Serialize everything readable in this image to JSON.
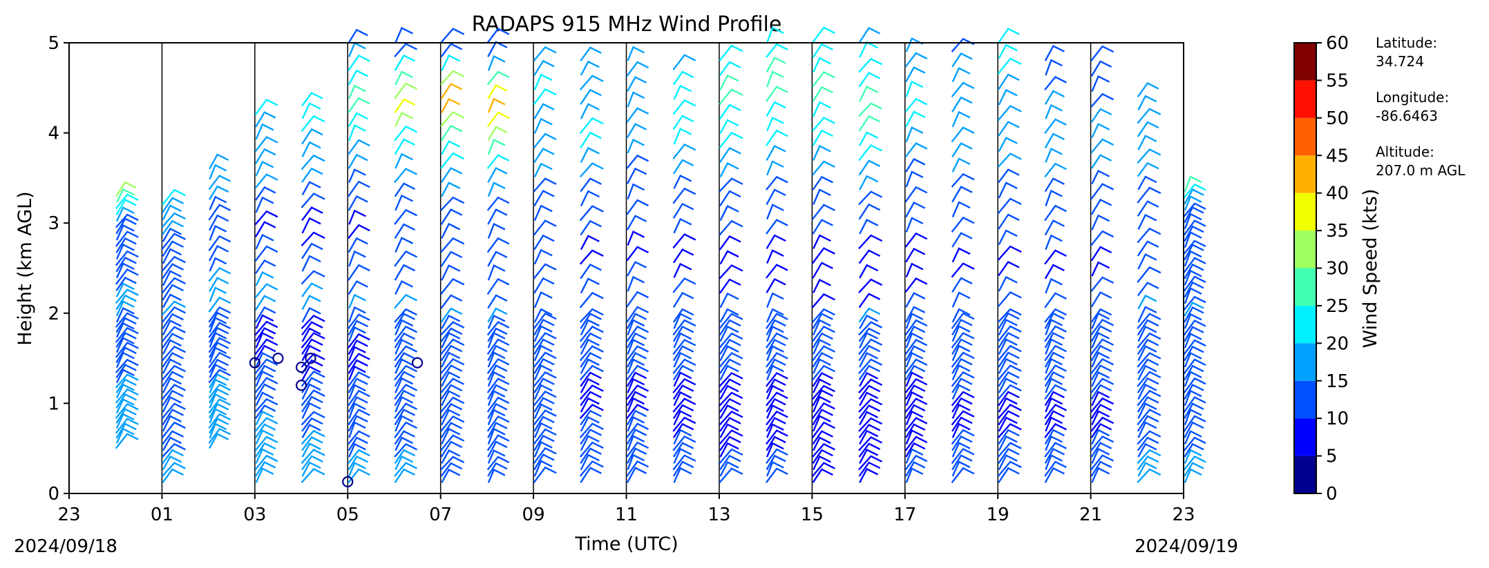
{
  "chart_data": {
    "type": "wind_barb_profile",
    "title": "RADAPS 915 MHz Wind Profile",
    "xlabel": "Time (UTC)",
    "ylabel": "Height (km AGL)",
    "ylim": [
      0,
      5
    ],
    "yticks": [
      0,
      1,
      2,
      3,
      4,
      5
    ],
    "xticks": [
      "23",
      "01",
      "03",
      "05",
      "07",
      "09",
      "11",
      "13",
      "15",
      "17",
      "19",
      "21",
      "23"
    ],
    "x_start_hour": 23,
    "x_span_hours": 24,
    "date_start": "2024/09/18",
    "date_end": "2024/09/19",
    "colorbar": {
      "label": "Wind Speed (kts)",
      "ticks": [
        0,
        5,
        10,
        15,
        20,
        25,
        30,
        35,
        40,
        45,
        50,
        55,
        60
      ],
      "colors": [
        "#00008f",
        "#0000ff",
        "#0050ff",
        "#00a0ff",
        "#00f0ff",
        "#40ffb0",
        "#a0ff60",
        "#f0ff00",
        "#ffb000",
        "#ff6000",
        "#ff1000",
        "#800000"
      ]
    },
    "site": {
      "latitude_label": "Latitude:",
      "latitude": "34.724",
      "longitude_label": "Longitude:",
      "longitude": "-86.6463",
      "altitude_label": "Altitude:",
      "altitude": "207.0 m AGL"
    },
    "profiles": [
      {
        "t": 23.0,
        "top": 3.35,
        "speeds": [
          15,
          14,
          13,
          12,
          11,
          10,
          10,
          11,
          12,
          13,
          14,
          13,
          12,
          11,
          12,
          13,
          14,
          16,
          18,
          22,
          26
        ]
      },
      {
        "t": 0.0,
        "bottom": 0.5,
        "top": 3.3,
        "speeds": [
          18,
          17,
          16,
          15,
          14,
          12,
          11,
          10,
          10,
          11,
          11,
          12,
          12,
          13,
          14,
          16,
          20,
          24,
          28,
          30
        ]
      },
      {
        "t": 1.0,
        "top": 3.2,
        "speeds": [
          15,
          14,
          13,
          12,
          11,
          10,
          10,
          11,
          12,
          13,
          14,
          15,
          16,
          17,
          18,
          20
        ]
      },
      {
        "t": 2.0,
        "bottom": 0.5,
        "top": 3.6,
        "speeds": [
          18,
          17,
          16,
          15,
          14,
          12,
          11,
          11,
          12,
          13,
          14,
          15,
          16,
          17,
          18
        ]
      },
      {
        "t": 3.0,
        "top": 4.2,
        "speeds": [
          17,
          16,
          15,
          14,
          12,
          10,
          5,
          8,
          12,
          14,
          16,
          17,
          18,
          18,
          19,
          19,
          20
        ]
      },
      {
        "t": 4.0,
        "top": 4.3,
        "speeds": [
          16,
          15,
          14,
          13,
          12,
          8,
          5,
          7,
          10,
          14,
          16,
          17,
          18,
          19,
          20,
          20,
          21
        ]
      },
      {
        "t": 5.0,
        "top": 5.0,
        "speeds": [
          15,
          14,
          13,
          12,
          10,
          8,
          9,
          10,
          12,
          14,
          16,
          18,
          20,
          22,
          25,
          28,
          24,
          20,
          16,
          14
        ]
      },
      {
        "t": 6.0,
        "top": 5.0,
        "speeds": [
          15,
          14,
          13,
          12,
          11,
          10,
          11,
          12,
          14,
          16,
          18,
          20,
          24,
          30,
          36,
          34,
          28,
          20,
          14,
          12
        ]
      },
      {
        "t": 7.0,
        "top": 5.0,
        "speeds": [
          14,
          13,
          12,
          11,
          10,
          11,
          12,
          14,
          16,
          18,
          20,
          22,
          26,
          32,
          44,
          40,
          30,
          20,
          14,
          10
        ]
      },
      {
        "t": 8.0,
        "top": 5.0,
        "speeds": [
          14,
          13,
          12,
          11,
          10,
          11,
          12,
          14,
          16,
          18,
          22,
          26,
          30,
          38,
          44,
          36,
          28,
          18,
          12,
          10
        ]
      },
      {
        "t": 9.0,
        "top": 4.8,
        "speeds": [
          13,
          12,
          11,
          10,
          10,
          11,
          12,
          13,
          14,
          15,
          16,
          17,
          18,
          19,
          20,
          20,
          18,
          16
        ]
      },
      {
        "t": 10.0,
        "top": 4.8,
        "speeds": [
          12,
          11,
          10,
          9,
          9,
          10,
          11,
          12,
          14,
          16,
          18,
          20,
          20,
          19,
          18,
          17,
          16,
          15
        ]
      },
      {
        "t": 11.0,
        "top": 4.8,
        "speeds": [
          12,
          11,
          10,
          9,
          9,
          10,
          11,
          12,
          13,
          14,
          15,
          16,
          17,
          18,
          18,
          17,
          16
        ]
      },
      {
        "t": 12.0,
        "top": 4.7,
        "speeds": [
          11,
          10,
          9,
          8,
          9,
          10,
          11,
          12,
          14,
          16,
          18,
          20,
          22,
          24,
          23,
          21,
          19
        ]
      },
      {
        "t": 13.0,
        "top": 4.8,
        "speeds": [
          10,
          9,
          8,
          7,
          8,
          10,
          11,
          12,
          14,
          16,
          18,
          20,
          22,
          24,
          26,
          25,
          22,
          20
        ]
      },
      {
        "t": 14.0,
        "top": 5.0,
        "speeds": [
          10,
          9,
          8,
          7,
          8,
          10,
          11,
          12,
          14,
          16,
          18,
          20,
          22,
          24,
          26,
          27,
          25,
          22,
          20
        ]
      },
      {
        "t": 15.0,
        "top": 5.0,
        "speeds": [
          8,
          7,
          6,
          6,
          8,
          10,
          11,
          12,
          14,
          16,
          18,
          20,
          22,
          24,
          25,
          26,
          24,
          22,
          20
        ]
      },
      {
        "t": 16.0,
        "top": 5.0,
        "speeds": [
          9,
          8,
          7,
          7,
          8,
          10,
          12,
          14,
          16,
          18,
          20,
          22,
          26,
          28,
          26,
          24,
          22,
          20,
          19
        ]
      },
      {
        "t": 17.0,
        "top": 4.9,
        "speeds": [
          10,
          9,
          8,
          8,
          9,
          10,
          11,
          12,
          13,
          14,
          16,
          18,
          20,
          21,
          20,
          18,
          16,
          15
        ]
      },
      {
        "t": 18.0,
        "top": 4.9,
        "speeds": [
          11,
          10,
          9,
          9,
          10,
          11,
          12,
          13,
          14,
          15,
          16,
          18,
          19,
          18,
          17,
          16,
          15,
          14
        ]
      },
      {
        "t": 19.0,
        "top": 5.0,
        "speeds": [
          11,
          10,
          9,
          9,
          10,
          11,
          12,
          13,
          14,
          15,
          16,
          17,
          18,
          19,
          19,
          20,
          22,
          24
        ]
      },
      {
        "t": 20.0,
        "top": 4.8,
        "speeds": [
          11,
          10,
          9,
          9,
          10,
          11,
          12,
          13,
          14,
          15,
          16,
          17,
          17,
          16,
          15,
          14,
          13,
          12
        ]
      },
      {
        "t": 21.0,
        "top": 4.8,
        "speeds": [
          11,
          10,
          9,
          9,
          10,
          11,
          12,
          13,
          14,
          15,
          16,
          16,
          15,
          14,
          13,
          12,
          11
        ]
      },
      {
        "t": 22.0,
        "top": 4.4,
        "speeds": [
          15,
          14,
          13,
          12,
          11,
          10,
          11,
          12,
          13,
          14,
          15,
          16,
          17,
          18,
          18,
          17,
          16
        ]
      }
    ],
    "calm_points": [
      {
        "t": 3.0,
        "h": 1.45
      },
      {
        "t": 3.5,
        "h": 1.5
      },
      {
        "t": 4.0,
        "h": 1.4
      },
      {
        "t": 4.0,
        "h": 1.2
      },
      {
        "t": 4.2,
        "h": 1.5
      },
      {
        "t": 5.0,
        "h": 0.13
      },
      {
        "t": 6.5,
        "h": 1.45
      }
    ]
  }
}
